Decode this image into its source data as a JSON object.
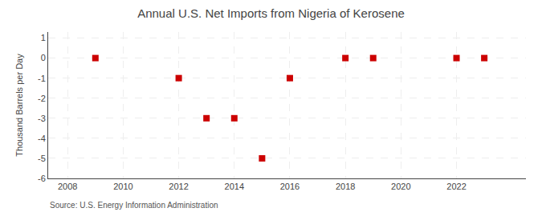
{
  "chart_data": {
    "type": "scatter",
    "title": "Annual U.S. Net Imports from Nigeria of Kerosene",
    "ylabel": "Thousand Barrels per Day",
    "source": "Source: U.S. Energy Information Administration",
    "x": [
      2009,
      2012,
      2013,
      2014,
      2015,
      2016,
      2018,
      2019,
      2022,
      2023
    ],
    "values": [
      0,
      -1,
      -3,
      -3,
      -5,
      -1,
      0,
      0,
      0,
      0
    ],
    "color": "#cc0000",
    "marker": "square",
    "xlim": [
      2007.3,
      2024.5
    ],
    "ylim": [
      -6,
      1.3
    ],
    "xticks": [
      2008,
      2010,
      2012,
      2014,
      2016,
      2018,
      2020,
      2022
    ],
    "yticks": [
      1,
      0,
      -1,
      -2,
      -3,
      -4,
      -5,
      -6
    ],
    "grid": true
  }
}
